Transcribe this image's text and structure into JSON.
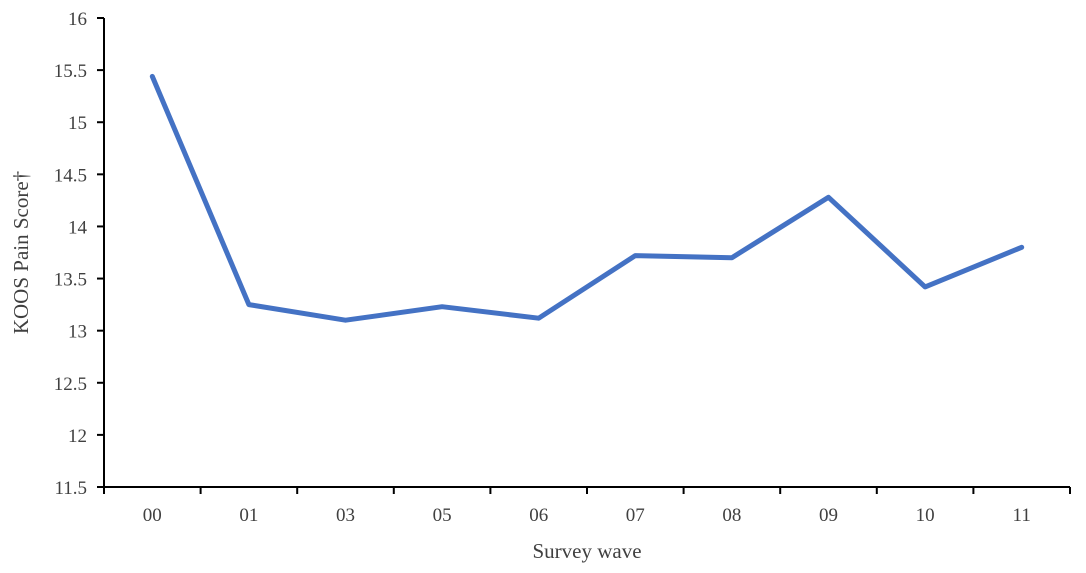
{
  "chart_data": {
    "type": "line",
    "title": "",
    "xlabel": "Survey wave",
    "ylabel": "KOOS Pain Score†",
    "categories": [
      "00",
      "01",
      "03",
      "05",
      "06",
      "07",
      "08",
      "09",
      "10",
      "11"
    ],
    "series": [
      {
        "values": [
          15.44,
          13.25,
          13.1,
          13.23,
          13.12,
          13.72,
          13.7,
          14.28,
          13.42,
          13.8
        ],
        "color": "#4472C4"
      }
    ],
    "ylim": [
      11.5,
      16
    ],
    "yticks": [
      "11.5",
      "12",
      "12.5",
      "13",
      "13.5",
      "14",
      "14.5",
      "15",
      "15.5",
      "16"
    ],
    "grid": false,
    "legend": "none"
  }
}
